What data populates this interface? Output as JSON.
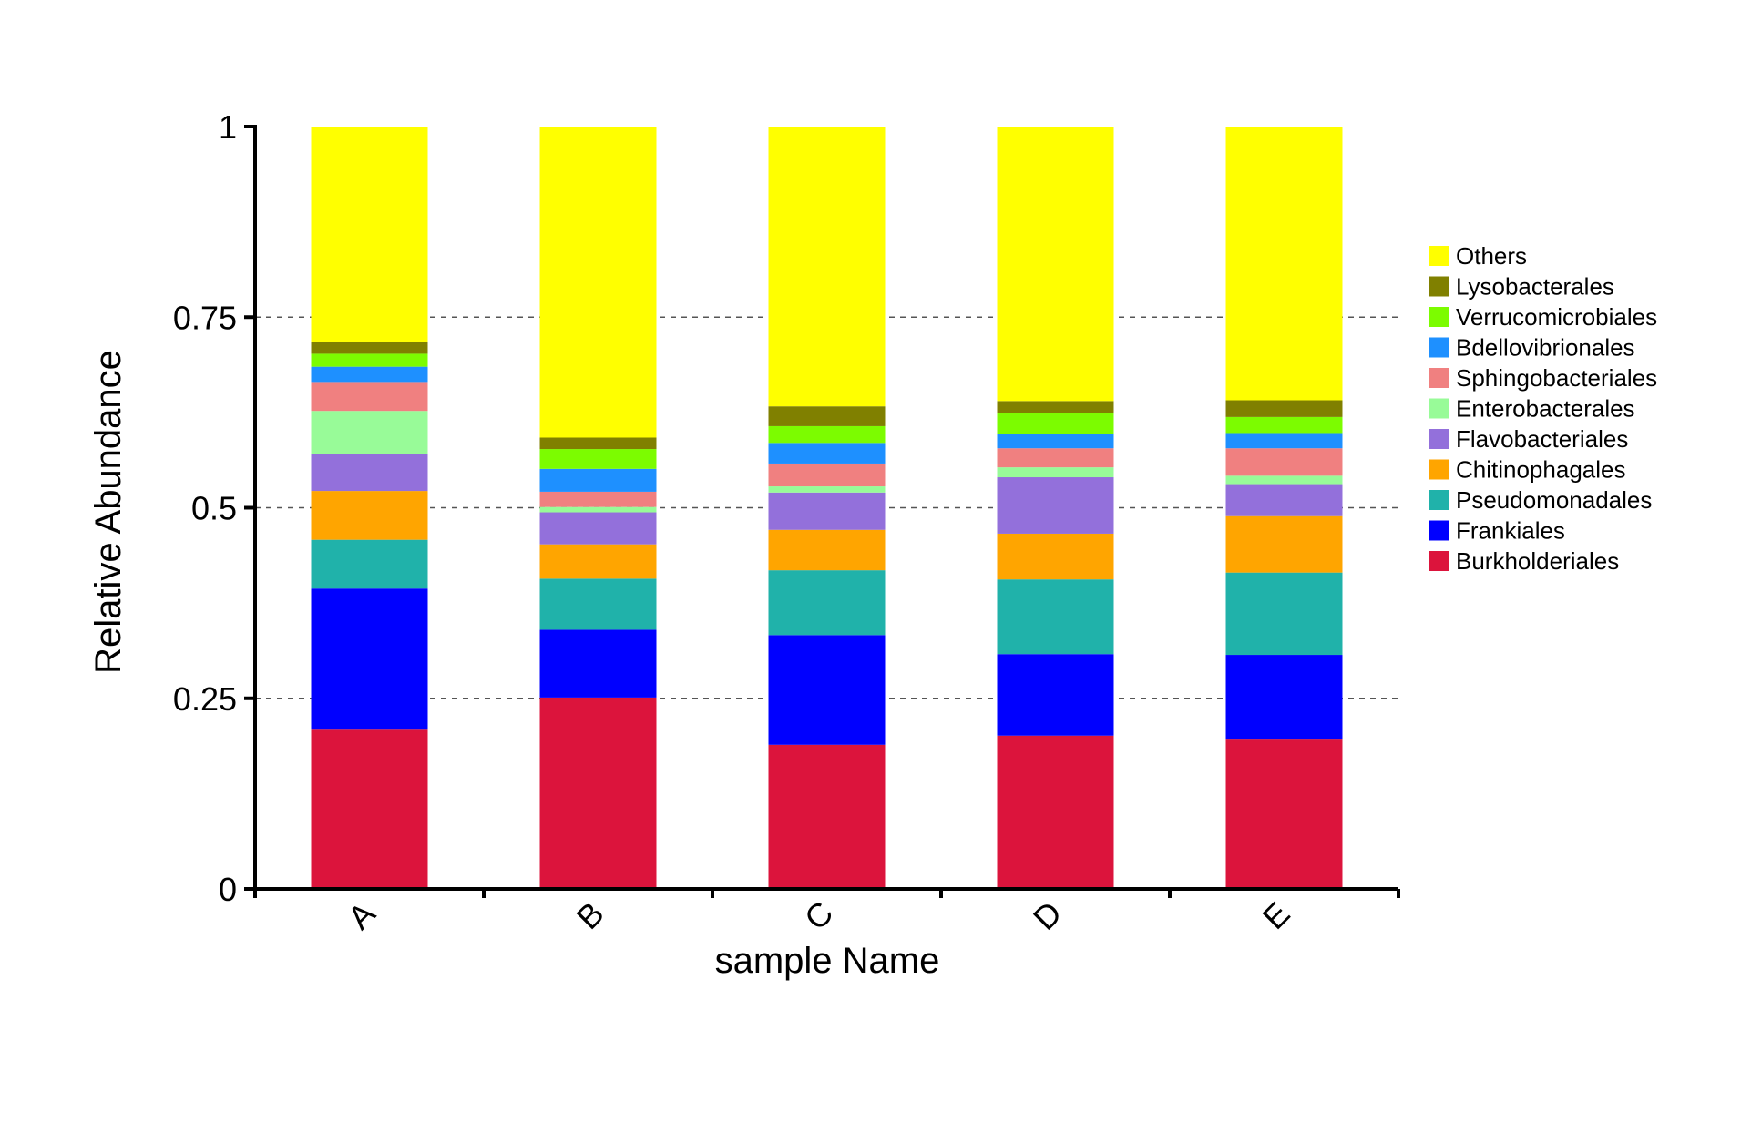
{
  "chart_data": {
    "type": "bar",
    "stacked": true,
    "xlabel": "sample Name",
    "ylabel": "Relative Abundance",
    "ylim": [
      0,
      1
    ],
    "yticks": [
      0,
      0.25,
      0.5,
      0.75,
      1
    ],
    "ytick_labels": [
      "0",
      "0.25",
      "0.5",
      "0.75",
      "1"
    ],
    "grid": "dashed horizontal at 0.25, 0.5, 0.75",
    "legend_position": "right",
    "categories": [
      "A",
      "B",
      "C",
      "D",
      "E"
    ],
    "series": [
      {
        "name": "Burkholderiales",
        "color": "#DC143C",
        "values": [
          0.21,
          0.251,
          0.189,
          0.201,
          0.197
        ]
      },
      {
        "name": "Frankiales",
        "color": "#0000FF",
        "values": [
          0.184,
          0.089,
          0.144,
          0.107,
          0.11
        ]
      },
      {
        "name": "Pseudomonadales",
        "color": "#20B2AA",
        "values": [
          0.064,
          0.067,
          0.085,
          0.098,
          0.108
        ]
      },
      {
        "name": "Chitinophagales",
        "color": "#FFA500",
        "values": [
          0.064,
          0.045,
          0.053,
          0.06,
          0.074
        ]
      },
      {
        "name": "Flavobacteriales",
        "color": "#9370DB",
        "values": [
          0.049,
          0.042,
          0.049,
          0.074,
          0.042
        ]
      },
      {
        "name": "Enterobacterales",
        "color": "#98FB98",
        "values": [
          0.056,
          0.007,
          0.008,
          0.013,
          0.011
        ]
      },
      {
        "name": "Sphingobacteriales",
        "color": "#F08080",
        "values": [
          0.038,
          0.02,
          0.03,
          0.025,
          0.036
        ]
      },
      {
        "name": "Bdellovibrionales",
        "color": "#1E90FF",
        "values": [
          0.02,
          0.03,
          0.027,
          0.019,
          0.02
        ]
      },
      {
        "name": "Verrucomicrobiales",
        "color": "#7CFC00",
        "values": [
          0.017,
          0.026,
          0.022,
          0.027,
          0.021
        ]
      },
      {
        "name": "Lysobacterales",
        "color": "#808000",
        "values": [
          0.016,
          0.015,
          0.026,
          0.016,
          0.022
        ]
      },
      {
        "name": "Others",
        "color": "#FFFF00",
        "values": [
          0.282,
          0.408,
          0.367,
          0.36,
          0.359
        ]
      }
    ]
  }
}
